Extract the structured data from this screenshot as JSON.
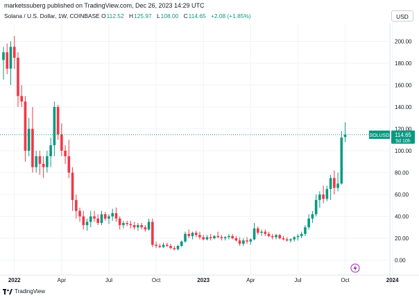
{
  "header": {
    "published_by": "marketssuberg published on TradingView.com, Dec 26, 2023 14:29 UTC",
    "symbol_line": "Solana / U.S. Dollar, 1W, COINBASE",
    "open_label": "O",
    "open": "112.52",
    "high_label": "H",
    "high": "125.97",
    "low_label": "L",
    "low": "108.00",
    "close_label": "C",
    "close": "114.65",
    "change": "+2.08 (+1.85%)",
    "currency_button": "USD"
  },
  "footer": {
    "brand": "TradingView"
  },
  "price_tag": {
    "symbol": "SOLUSD",
    "price": "114.65",
    "countdown": "5d 10h"
  },
  "colors": {
    "up": "#089981",
    "down": "#f23645",
    "grid": "#f0f3fa",
    "text": "#131722"
  },
  "icons": [
    "lightning-icon",
    "tradingview-logo-icon"
  ],
  "chart_data": {
    "type": "candlestick",
    "interval": "1W",
    "ylim": [
      -5,
      205
    ],
    "y_ticks": [
      0,
      20,
      40,
      60,
      80,
      100,
      120,
      140,
      160,
      180,
      200
    ],
    "y_tick_labels": [
      "0.00",
      "20.00",
      "40.00",
      "60.00",
      "80.00",
      "100.00",
      "120.00",
      "140.00",
      "160.00",
      "180.00",
      "200.00"
    ],
    "x_ticks": [
      "2022",
      "Apr",
      "Jul",
      "Oct",
      "2023",
      "Apr",
      "Jul",
      "Oct",
      "2024"
    ],
    "x_tick_weeks": [
      3,
      16,
      29,
      42,
      55,
      68,
      81,
      94,
      107
    ],
    "bold_ticks": [
      "2022",
      "2023",
      "2024"
    ],
    "grid": true,
    "last_price_line": 114.65,
    "candles": [
      [
        183,
        195,
        165,
        190
      ],
      [
        190,
        198,
        170,
        175
      ],
      [
        175,
        200,
        160,
        195
      ],
      [
        195,
        205,
        175,
        185
      ],
      [
        185,
        190,
        140,
        150
      ],
      [
        150,
        160,
        140,
        145
      ],
      [
        145,
        150,
        90,
        100
      ],
      [
        100,
        130,
        95,
        120
      ],
      [
        120,
        140,
        80,
        85
      ],
      [
        85,
        100,
        80,
        95
      ],
      [
        95,
        100,
        78,
        88
      ],
      [
        88,
        95,
        75,
        85
      ],
      [
        85,
        100,
        80,
        95
      ],
      [
        95,
        112,
        85,
        105
      ],
      [
        105,
        145,
        95,
        140
      ],
      [
        140,
        142,
        110,
        115
      ],
      [
        115,
        125,
        95,
        100
      ],
      [
        100,
        105,
        88,
        95
      ],
      [
        95,
        110,
        75,
        80
      ],
      [
        80,
        85,
        45,
        55
      ],
      [
        55,
        60,
        38,
        45
      ],
      [
        45,
        48,
        35,
        40
      ],
      [
        40,
        45,
        28,
        32
      ],
      [
        32,
        38,
        27,
        35
      ],
      [
        35,
        45,
        30,
        40
      ],
      [
        40,
        45,
        35,
        38
      ],
      [
        38,
        42,
        32,
        34
      ],
      [
        34,
        45,
        32,
        42
      ],
      [
        42,
        44,
        36,
        38
      ],
      [
        38,
        42,
        33,
        40
      ],
      [
        40,
        47,
        36,
        43
      ],
      [
        43,
        48,
        35,
        38
      ],
      [
        38,
        40,
        28,
        32
      ],
      [
        32,
        36,
        29,
        34
      ],
      [
        34,
        36,
        31,
        33
      ],
      [
        33,
        36,
        29,
        32
      ],
      [
        32,
        35,
        28,
        30
      ],
      [
        30,
        34,
        27,
        32
      ],
      [
        32,
        34,
        28,
        30
      ],
      [
        30,
        32,
        26,
        28
      ],
      [
        28,
        38,
        27,
        35
      ],
      [
        35,
        38,
        12,
        14
      ],
      [
        14,
        17,
        11,
        13
      ],
      [
        13,
        15,
        11,
        12
      ],
      [
        12,
        16,
        11,
        14
      ],
      [
        14,
        16,
        12,
        13
      ],
      [
        13,
        15,
        10,
        11
      ],
      [
        11,
        13,
        9,
        10
      ],
      [
        10,
        14,
        9,
        13
      ],
      [
        13,
        18,
        12,
        17
      ],
      [
        17,
        26,
        16,
        24
      ],
      [
        24,
        28,
        20,
        22
      ],
      [
        22,
        26,
        19,
        25
      ],
      [
        25,
        27,
        21,
        23
      ],
      [
        23,
        26,
        19,
        21
      ],
      [
        21,
        23,
        18,
        19
      ],
      [
        19,
        23,
        18,
        21
      ],
      [
        21,
        24,
        18,
        20
      ],
      [
        20,
        23,
        19,
        22
      ],
      [
        22,
        26,
        20,
        21
      ],
      [
        21,
        23,
        18,
        20
      ],
      [
        20,
        22,
        18,
        21
      ],
      [
        21,
        24,
        19,
        22
      ],
      [
        22,
        24,
        19,
        20
      ],
      [
        20,
        22,
        17,
        18
      ],
      [
        18,
        21,
        13,
        15
      ],
      [
        15,
        20,
        13,
        18
      ],
      [
        18,
        21,
        15,
        17
      ],
      [
        17,
        20,
        14,
        19
      ],
      [
        19,
        34,
        18,
        29
      ],
      [
        29,
        31,
        23,
        25
      ],
      [
        25,
        28,
        22,
        26
      ],
      [
        26,
        28,
        22,
        24
      ],
      [
        24,
        26,
        21,
        22
      ],
      [
        22,
        24,
        19,
        21
      ],
      [
        21,
        24,
        19,
        23
      ],
      [
        23,
        24,
        19,
        20
      ],
      [
        20,
        22,
        18,
        19
      ],
      [
        19,
        21,
        17,
        18
      ],
      [
        18,
        20,
        16,
        19
      ],
      [
        19,
        22,
        17,
        21
      ],
      [
        21,
        24,
        18,
        22
      ],
      [
        22,
        26,
        20,
        24
      ],
      [
        24,
        32,
        22,
        30
      ],
      [
        30,
        42,
        28,
        38
      ],
      [
        38,
        45,
        34,
        42
      ],
      [
        42,
        60,
        40,
        55
      ],
      [
        55,
        63,
        48,
        60
      ],
      [
        60,
        68,
        52,
        56
      ],
      [
        56,
        68,
        54,
        65
      ],
      [
        65,
        78,
        55,
        75
      ],
      [
        75,
        82,
        60,
        66
      ],
      [
        66,
        80,
        63,
        70
      ],
      [
        70,
        118,
        69,
        112
      ],
      [
        112.52,
        125.97,
        108,
        114.65
      ]
    ]
  }
}
